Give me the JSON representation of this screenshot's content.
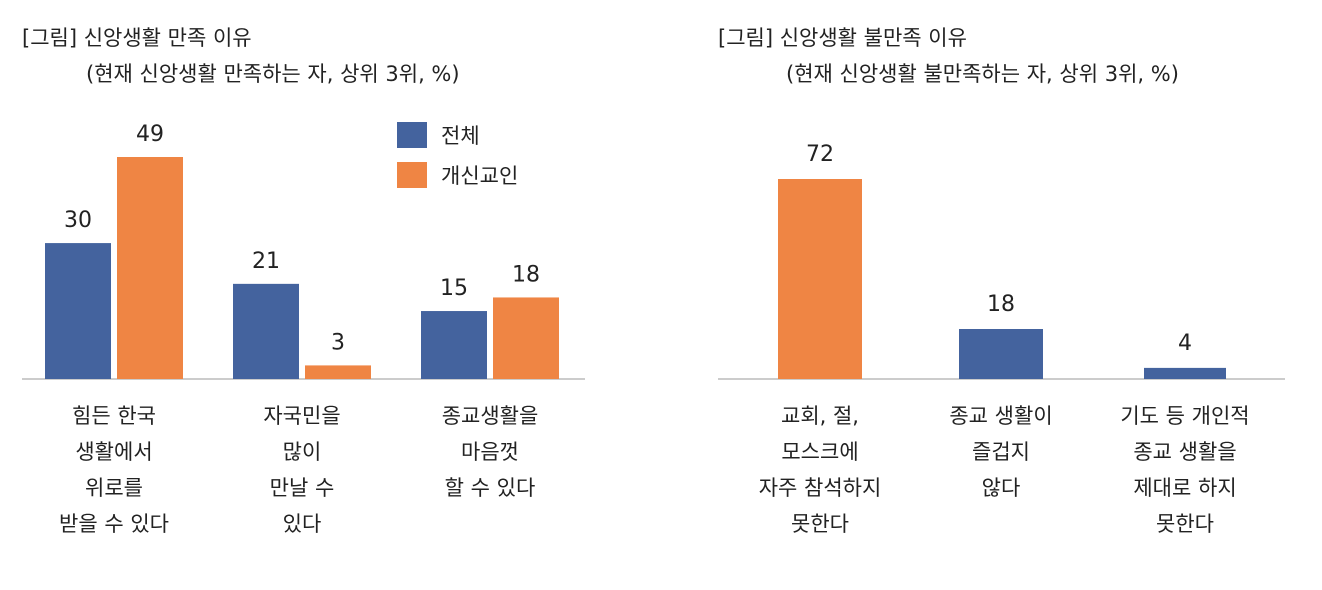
{
  "colors": {
    "total": "#44639e",
    "converts": "#ef8544",
    "axis": "#bbbbbb"
  },
  "chart_data": [
    {
      "type": "bar",
      "title": "[그림] 신앙생활 만족 이유",
      "subtitle": "(현재 신앙생활 만족하는 자, 상위 3위, %)",
      "categories": [
        [
          "힘든 한국",
          "생활에서",
          "위로를",
          "받을 수 있다"
        ],
        [
          "자국민을",
          "많이",
          "만날 수",
          "있다"
        ],
        [
          "종교생활을",
          "마음껏",
          "할 수 있다"
        ]
      ],
      "series": [
        {
          "name": "전체",
          "values": [
            30,
            21,
            15
          ]
        },
        {
          "name": "개신교인",
          "values": [
            49,
            3,
            18
          ]
        }
      ],
      "legend": "top-right",
      "ylim": [
        0,
        60
      ],
      "grid": false
    },
    {
      "type": "bar",
      "title": "[그림] 신앙생활 불만족 이유",
      "subtitle": "(현재 신앙생활 불만족하는 자, 상위 3위, %)",
      "categories": [
        [
          "교회, 절,",
          "모스크에",
          "자주 참석하지",
          "못한다"
        ],
        [
          "종교 생활이",
          "즐겁지",
          "않다"
        ],
        [
          "기도 등 개인적",
          "종교 생활을",
          "제대로 하지",
          "못한다"
        ]
      ],
      "values": [
        72,
        18,
        4
      ],
      "bar_colors": [
        "converts",
        "total",
        "total"
      ],
      "ylim": [
        0,
        88
      ],
      "grid": false
    }
  ]
}
